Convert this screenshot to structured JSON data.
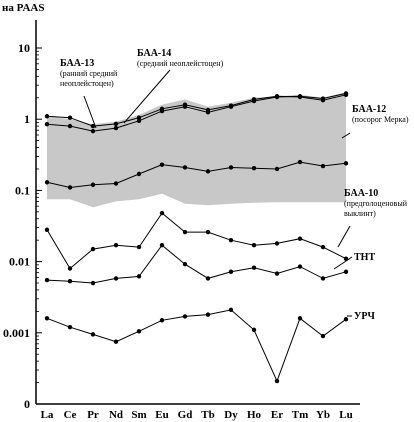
{
  "chart_data": {
    "type": "line",
    "ylabel": "на PAAS",
    "yscale": "log",
    "ylim": [
      0.0001,
      10
    ],
    "yticks": [
      {
        "v": 10,
        "label": "10"
      },
      {
        "v": 1,
        "label": "1"
      },
      {
        "v": 0.1,
        "label": "0.1"
      },
      {
        "v": 0.01,
        "label": "0.01"
      },
      {
        "v": 0.001,
        "label": "0.001"
      },
      {
        "v": 0.0001,
        "label": "0"
      }
    ],
    "categories": [
      "La",
      "Ce",
      "Pr",
      "Nd",
      "Sm",
      "Eu",
      "Gd",
      "Tb",
      "Dy",
      "Ho",
      "Er",
      "Tm",
      "Yb",
      "Lu"
    ],
    "band": {
      "upper": [
        1.1,
        1.0,
        0.85,
        0.92,
        1.15,
        1.6,
        1.9,
        1.5,
        1.7,
        2.0,
        2.1,
        2.2,
        2.0,
        2.4
      ],
      "lower": [
        0.075,
        0.075,
        0.058,
        0.07,
        0.075,
        0.09,
        0.065,
        0.062,
        0.065,
        0.067,
        0.068,
        0.068,
        0.068,
        0.068
      ],
      "color": "#c8c8c8"
    },
    "series": [
      {
        "values": [
          1.1,
          1.05,
          0.8,
          0.86,
          1.05,
          1.4,
          1.6,
          1.35,
          1.55,
          1.9,
          2.1,
          2.05,
          1.85,
          2.2
        ]
      },
      {
        "values": [
          0.85,
          0.8,
          0.68,
          0.75,
          0.95,
          1.3,
          1.5,
          1.25,
          1.5,
          1.8,
          2.05,
          2.1,
          1.95,
          2.3
        ]
      },
      {
        "values": [
          0.13,
          0.11,
          0.12,
          0.125,
          0.17,
          0.23,
          0.21,
          0.185,
          0.21,
          0.205,
          0.2,
          0.25,
          0.22,
          0.24
        ]
      },
      {
        "values": [
          0.028,
          0.008,
          0.015,
          0.017,
          0.016,
          0.048,
          0.026,
          0.026,
          0.02,
          0.017,
          0.018,
          0.021,
          0.016,
          0.011
        ]
      },
      {
        "values": [
          0.0055,
          0.0053,
          0.005,
          0.0058,
          0.0062,
          0.017,
          0.0092,
          0.0058,
          0.0072,
          0.0082,
          0.0068,
          0.0085,
          0.0058,
          0.0072
        ]
      },
      {
        "values": [
          0.0016,
          0.0012,
          0.00095,
          0.00075,
          0.00105,
          0.0015,
          0.0017,
          0.0018,
          0.0021,
          0.0011,
          0.00021,
          0.0016,
          0.0009,
          0.00155
        ]
      }
    ],
    "annotations": [
      {
        "id": "baa13",
        "lines": [
          "БАА-13",
          "(ранний средний",
          "неоплейстоцен)"
        ]
      },
      {
        "id": "baa14",
        "lines": [
          "БАА-14",
          "(средний неоплейстоцен)"
        ]
      },
      {
        "id": "baa12",
        "lines": [
          "БАА-12",
          "(посорог Мерка)"
        ]
      },
      {
        "id": "baa10",
        "lines": [
          "БАА-10",
          "(предголоценовый",
          "выклинт)"
        ]
      },
      {
        "id": "tnt",
        "lines": [
          "ТНТ"
        ]
      },
      {
        "id": "urch",
        "lines": [
          "УРЧ"
        ]
      }
    ]
  }
}
